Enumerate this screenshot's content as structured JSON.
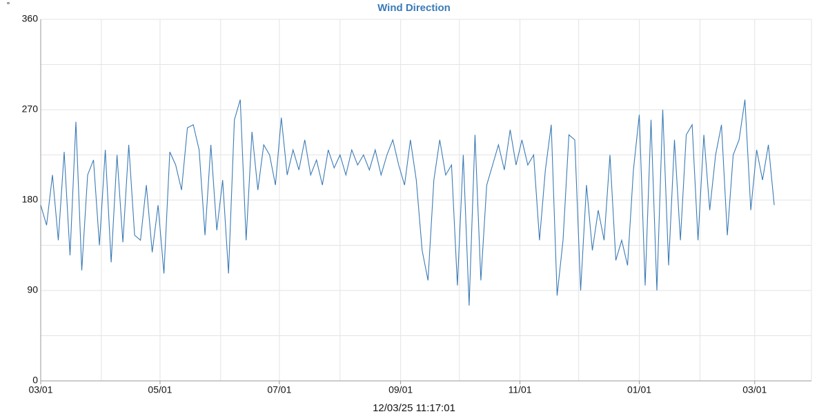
{
  "chart_data": {
    "type": "line",
    "title": "Wind Direction",
    "y_unit": "°",
    "footer": "12/03/25 11:17:01",
    "x": [
      0,
      3,
      6,
      9,
      12,
      15,
      18,
      21,
      24,
      27,
      30,
      33,
      36,
      39,
      42,
      45,
      48,
      51,
      54,
      57,
      60,
      63,
      66,
      69,
      72,
      75,
      78,
      81,
      84,
      87,
      90,
      93,
      96,
      99,
      102,
      105,
      108,
      111,
      114,
      117,
      120,
      123,
      126,
      129,
      132,
      135,
      138,
      141,
      144,
      147,
      150,
      153,
      156,
      159,
      162,
      165,
      168,
      171,
      174,
      177,
      180,
      183,
      186,
      189,
      192,
      195,
      198,
      201,
      204,
      207,
      210,
      213,
      216,
      219,
      222,
      225,
      228,
      231,
      234,
      237,
      240,
      243,
      246,
      249,
      252,
      255,
      258,
      261,
      264,
      267,
      270,
      273,
      276,
      279,
      282,
      285,
      288,
      291,
      294,
      297,
      300,
      303,
      306,
      309,
      312,
      315,
      318,
      321,
      324,
      327,
      330,
      333,
      336,
      339,
      342,
      345,
      348,
      351,
      354,
      357,
      360,
      363,
      366,
      369,
      372,
      375
    ],
    "series": [
      {
        "name": "Wind Direction",
        "color": "#3a7ab5",
        "values": [
          175,
          155,
          205,
          140,
          228,
          125,
          258,
          110,
          205,
          220,
          135,
          230,
          118,
          225,
          138,
          235,
          145,
          140,
          195,
          128,
          175,
          107,
          228,
          215,
          190,
          252,
          255,
          230,
          145,
          235,
          150,
          200,
          107,
          260,
          280,
          140,
          248,
          190,
          235,
          225,
          195,
          262,
          205,
          230,
          210,
          240,
          205,
          220,
          195,
          230,
          212,
          225,
          205,
          230,
          215,
          225,
          210,
          230,
          205,
          225,
          240,
          215,
          195,
          240,
          200,
          130,
          100,
          200,
          240,
          205,
          215,
          95,
          225,
          75,
          245,
          100,
          195,
          215,
          235,
          210,
          250,
          215,
          240,
          215,
          225,
          140,
          210,
          255,
          85,
          140,
          245,
          240,
          90,
          195,
          130,
          170,
          140,
          225,
          120,
          140,
          115,
          210,
          265,
          95,
          260,
          90,
          270,
          115,
          240,
          140,
          245,
          255,
          140,
          245,
          170,
          225,
          255,
          145,
          225,
          240,
          280,
          170,
          230,
          200,
          235,
          175
        ]
      }
    ],
    "xlim": [
      0,
      394
    ],
    "xticks": [
      {
        "value": 0,
        "label": "03/01"
      },
      {
        "value": 61,
        "label": "05/01"
      },
      {
        "value": 122,
        "label": "07/01"
      },
      {
        "value": 184,
        "label": "09/01"
      },
      {
        "value": 245,
        "label": "11/01"
      },
      {
        "value": 306,
        "label": "01/01"
      },
      {
        "value": 365,
        "label": "03/01"
      }
    ],
    "xminor": [
      31,
      92,
      153,
      214,
      275,
      337
    ],
    "ylim": [
      0,
      360
    ],
    "yticks": [
      0,
      90,
      180,
      270,
      360
    ],
    "yminor": [
      45,
      135,
      225,
      315
    ],
    "grid": true
  }
}
